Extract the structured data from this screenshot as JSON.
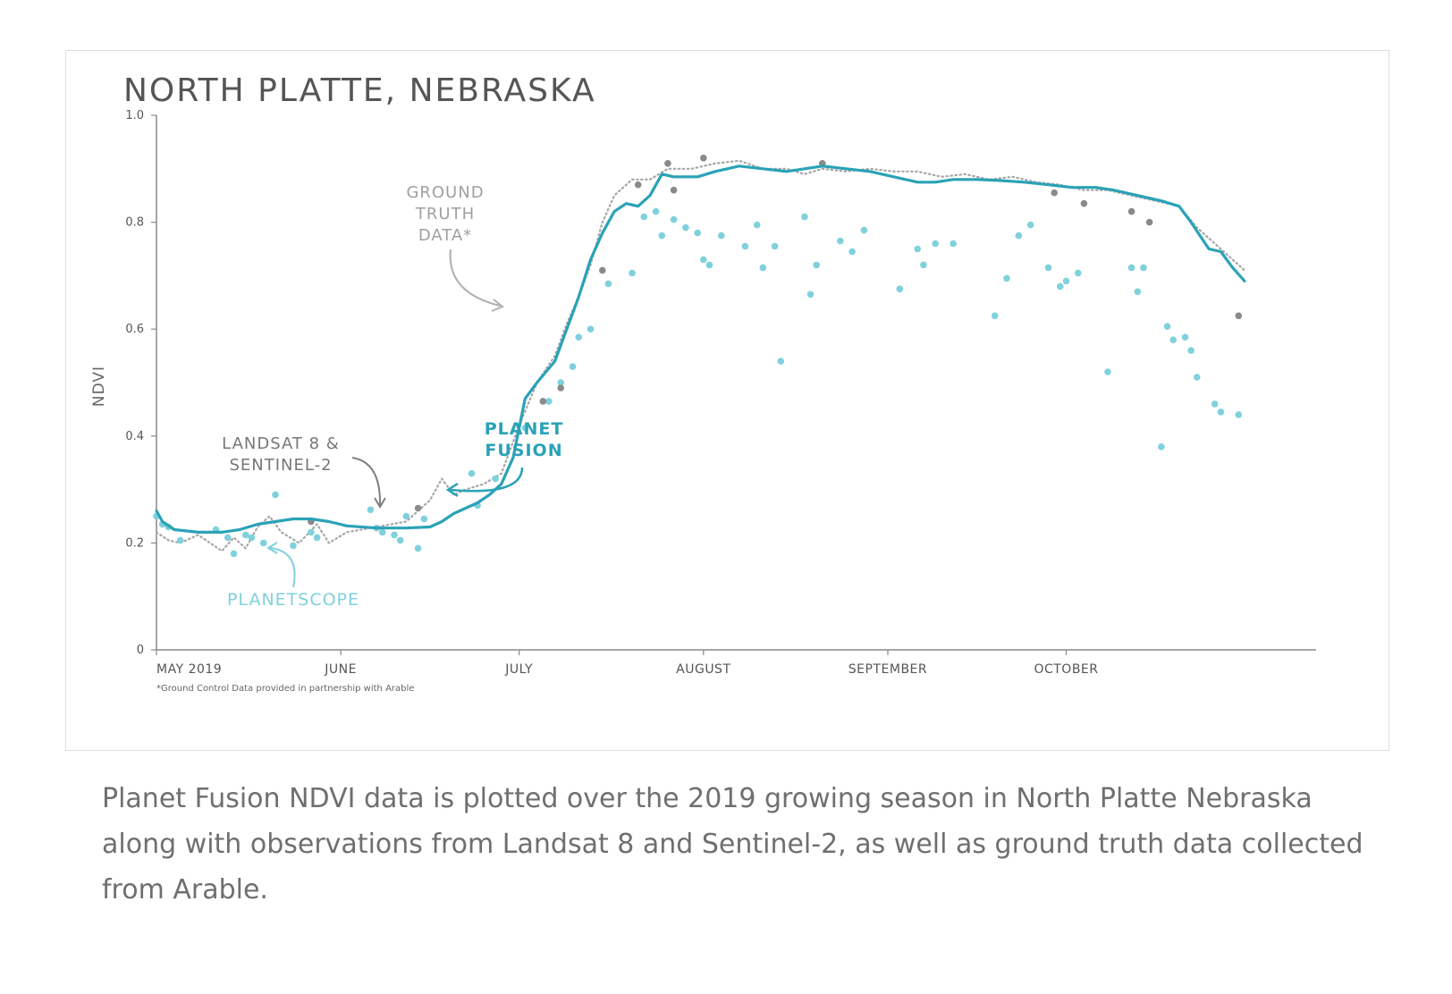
{
  "chart_data": {
    "type": "line",
    "title": "NORTH PLATTE, NEBRASKA",
    "xlabel": "",
    "ylabel": "NDVI",
    "ylim": [
      0,
      1.0
    ],
    "yticks": [
      {
        "value": 0,
        "label": "0"
      },
      {
        "value": 0.2,
        "label": "0.2"
      },
      {
        "value": 0.4,
        "label": "0.4"
      },
      {
        "value": 0.6,
        "label": "0.6"
      },
      {
        "value": 0.8,
        "label": "0.8"
      },
      {
        "value": 1.0,
        "label": "1.0"
      }
    ],
    "xlim": [
      "2019-05-01",
      "2019-10-31"
    ],
    "xticks": [
      {
        "date": "2019-05-01",
        "label": "MAY 2019"
      },
      {
        "date": "2019-06-01",
        "label": "JUNE"
      },
      {
        "date": "2019-07-01",
        "label": "JULY"
      },
      {
        "date": "2019-08-01",
        "label": "AUGUST"
      },
      {
        "date": "2019-09-01",
        "label": "SEPTEMBER"
      },
      {
        "date": "2019-10-01",
        "label": "OCTOBER"
      }
    ],
    "grid": false,
    "legend": "none",
    "footnote": "*Ground Control Data provided in partnership with Arable",
    "colors": {
      "planet_fusion": "#2aa2b7",
      "ground_truth": "#a6a6a6",
      "planetscope": "#7fd1dc",
      "landsat_sentinel": "#8a8a8a",
      "axis": "#888888"
    },
    "series": [
      {
        "name": "PLANET FUSION",
        "style": "line",
        "points": [
          [
            "2019-05-01",
            0.26
          ],
          [
            "2019-05-02",
            0.24
          ],
          [
            "2019-05-04",
            0.225
          ],
          [
            "2019-05-08",
            0.22
          ],
          [
            "2019-05-12",
            0.22
          ],
          [
            "2019-05-15",
            0.225
          ],
          [
            "2019-05-18",
            0.235
          ],
          [
            "2019-05-21",
            0.24
          ],
          [
            "2019-05-24",
            0.245
          ],
          [
            "2019-05-27",
            0.245
          ],
          [
            "2019-05-30",
            0.24
          ],
          [
            "2019-06-02",
            0.232
          ],
          [
            "2019-06-07",
            0.228
          ],
          [
            "2019-06-12",
            0.228
          ],
          [
            "2019-06-16",
            0.23
          ],
          [
            "2019-06-18",
            0.24
          ],
          [
            "2019-06-20",
            0.255
          ],
          [
            "2019-06-22",
            0.265
          ],
          [
            "2019-06-24",
            0.275
          ],
          [
            "2019-06-26",
            0.29
          ],
          [
            "2019-06-28",
            0.31
          ],
          [
            "2019-06-30",
            0.36
          ],
          [
            "2019-07-02",
            0.47
          ],
          [
            "2019-07-04",
            0.5
          ],
          [
            "2019-07-07",
            0.54
          ],
          [
            "2019-07-09",
            0.6
          ],
          [
            "2019-07-11",
            0.66
          ],
          [
            "2019-07-13",
            0.73
          ],
          [
            "2019-07-15",
            0.78
          ],
          [
            "2019-07-17",
            0.82
          ],
          [
            "2019-07-19",
            0.835
          ],
          [
            "2019-07-21",
            0.83
          ],
          [
            "2019-07-23",
            0.85
          ],
          [
            "2019-07-25",
            0.89
          ],
          [
            "2019-07-27",
            0.885
          ],
          [
            "2019-07-31",
            0.885
          ],
          [
            "2019-08-03",
            0.895
          ],
          [
            "2019-08-07",
            0.905
          ],
          [
            "2019-08-11",
            0.9
          ],
          [
            "2019-08-15",
            0.895
          ],
          [
            "2019-08-18",
            0.9
          ],
          [
            "2019-08-21",
            0.905
          ],
          [
            "2019-08-25",
            0.9
          ],
          [
            "2019-08-29",
            0.895
          ],
          [
            "2019-09-02",
            0.885
          ],
          [
            "2019-09-06",
            0.875
          ],
          [
            "2019-09-09",
            0.875
          ],
          [
            "2019-09-12",
            0.88
          ],
          [
            "2019-09-16",
            0.88
          ],
          [
            "2019-09-20",
            0.878
          ],
          [
            "2019-09-24",
            0.875
          ],
          [
            "2019-09-28",
            0.87
          ],
          [
            "2019-10-02",
            0.865
          ],
          [
            "2019-10-06",
            0.865
          ],
          [
            "2019-10-09",
            0.86
          ],
          [
            "2019-10-13",
            0.85
          ],
          [
            "2019-10-17",
            0.84
          ],
          [
            "2019-10-20",
            0.83
          ],
          [
            "2019-10-22",
            0.8
          ],
          [
            "2019-10-25",
            0.75
          ],
          [
            "2019-10-27",
            0.745
          ],
          [
            "2019-10-29",
            0.715
          ],
          [
            "2019-10-31",
            0.69
          ]
        ]
      },
      {
        "name": "GROUND TRUTH DATA*",
        "style": "dotted-line",
        "points": [
          [
            "2019-05-01",
            0.22
          ],
          [
            "2019-05-03",
            0.205
          ],
          [
            "2019-05-05",
            0.2
          ],
          [
            "2019-05-08",
            0.215
          ],
          [
            "2019-05-10",
            0.2
          ],
          [
            "2019-05-12",
            0.185
          ],
          [
            "2019-05-14",
            0.21
          ],
          [
            "2019-05-16",
            0.19
          ],
          [
            "2019-05-18",
            0.23
          ],
          [
            "2019-05-20",
            0.25
          ],
          [
            "2019-05-22",
            0.22
          ],
          [
            "2019-05-25",
            0.2
          ],
          [
            "2019-05-28",
            0.235
          ],
          [
            "2019-05-30",
            0.2
          ],
          [
            "2019-06-02",
            0.22
          ],
          [
            "2019-06-07",
            0.23
          ],
          [
            "2019-06-12",
            0.24
          ],
          [
            "2019-06-16",
            0.28
          ],
          [
            "2019-06-18",
            0.32
          ],
          [
            "2019-06-20",
            0.29
          ],
          [
            "2019-06-22",
            0.3
          ],
          [
            "2019-06-25",
            0.31
          ],
          [
            "2019-06-28",
            0.33
          ],
          [
            "2019-07-01",
            0.42
          ],
          [
            "2019-07-04",
            0.5
          ],
          [
            "2019-07-07",
            0.55
          ],
          [
            "2019-07-09",
            0.61
          ],
          [
            "2019-07-11",
            0.66
          ],
          [
            "2019-07-13",
            0.72
          ],
          [
            "2019-07-15",
            0.8
          ],
          [
            "2019-07-17",
            0.85
          ],
          [
            "2019-07-20",
            0.88
          ],
          [
            "2019-07-23",
            0.88
          ],
          [
            "2019-07-26",
            0.9
          ],
          [
            "2019-07-30",
            0.9
          ],
          [
            "2019-08-03",
            0.91
          ],
          [
            "2019-08-07",
            0.915
          ],
          [
            "2019-08-11",
            0.9
          ],
          [
            "2019-08-15",
            0.9
          ],
          [
            "2019-08-18",
            0.89
          ],
          [
            "2019-08-21",
            0.9
          ],
          [
            "2019-08-25",
            0.895
          ],
          [
            "2019-08-29",
            0.9
          ],
          [
            "2019-09-02",
            0.895
          ],
          [
            "2019-09-06",
            0.895
          ],
          [
            "2019-09-10",
            0.885
          ],
          [
            "2019-09-14",
            0.89
          ],
          [
            "2019-09-18",
            0.88
          ],
          [
            "2019-09-22",
            0.885
          ],
          [
            "2019-09-26",
            0.875
          ],
          [
            "2019-09-30",
            0.87
          ],
          [
            "2019-10-04",
            0.86
          ],
          [
            "2019-10-08",
            0.86
          ],
          [
            "2019-10-12",
            0.85
          ],
          [
            "2019-10-16",
            0.84
          ],
          [
            "2019-10-20",
            0.83
          ],
          [
            "2019-10-23",
            0.79
          ],
          [
            "2019-10-26",
            0.76
          ],
          [
            "2019-10-29",
            0.73
          ],
          [
            "2019-10-31",
            0.71
          ]
        ]
      },
      {
        "name": "PLANETSCOPE",
        "style": "scatter",
        "points": [
          [
            "2019-05-01",
            0.25
          ],
          [
            "2019-05-02",
            0.235
          ],
          [
            "2019-05-03",
            0.23
          ],
          [
            "2019-05-05",
            0.205
          ],
          [
            "2019-05-11",
            0.225
          ],
          [
            "2019-05-13",
            0.21
          ],
          [
            "2019-05-14",
            0.18
          ],
          [
            "2019-05-16",
            0.215
          ],
          [
            "2019-05-17",
            0.21
          ],
          [
            "2019-05-19",
            0.2
          ],
          [
            "2019-05-21",
            0.29
          ],
          [
            "2019-05-24",
            0.195
          ],
          [
            "2019-05-27",
            0.22
          ],
          [
            "2019-05-28",
            0.21
          ],
          [
            "2019-06-06",
            0.262
          ],
          [
            "2019-06-07",
            0.228
          ],
          [
            "2019-06-08",
            0.22
          ],
          [
            "2019-06-10",
            0.215
          ],
          [
            "2019-06-11",
            0.205
          ],
          [
            "2019-06-12",
            0.25
          ],
          [
            "2019-06-14",
            0.19
          ],
          [
            "2019-06-15",
            0.245
          ],
          [
            "2019-06-23",
            0.33
          ],
          [
            "2019-06-24",
            0.27
          ],
          [
            "2019-06-27",
            0.32
          ],
          [
            "2019-07-02",
            0.415
          ],
          [
            "2019-07-06",
            0.465
          ],
          [
            "2019-07-08",
            0.5
          ],
          [
            "2019-07-10",
            0.53
          ],
          [
            "2019-07-11",
            0.585
          ],
          [
            "2019-07-13",
            0.6
          ],
          [
            "2019-07-16",
            0.685
          ],
          [
            "2019-07-20",
            0.705
          ],
          [
            "2019-07-22",
            0.81
          ],
          [
            "2019-07-24",
            0.82
          ],
          [
            "2019-07-25",
            0.775
          ],
          [
            "2019-07-27",
            0.805
          ],
          [
            "2019-07-29",
            0.79
          ],
          [
            "2019-07-31",
            0.78
          ],
          [
            "2019-08-01",
            0.73
          ],
          [
            "2019-08-02",
            0.72
          ],
          [
            "2019-08-04",
            0.775
          ],
          [
            "2019-08-08",
            0.755
          ],
          [
            "2019-08-10",
            0.795
          ],
          [
            "2019-08-11",
            0.715
          ],
          [
            "2019-08-13",
            0.755
          ],
          [
            "2019-08-14",
            0.54
          ],
          [
            "2019-08-18",
            0.81
          ],
          [
            "2019-08-19",
            0.665
          ],
          [
            "2019-08-20",
            0.72
          ],
          [
            "2019-08-24",
            0.765
          ],
          [
            "2019-08-26",
            0.745
          ],
          [
            "2019-08-28",
            0.785
          ],
          [
            "2019-09-03",
            0.675
          ],
          [
            "2019-09-06",
            0.75
          ],
          [
            "2019-09-07",
            0.72
          ],
          [
            "2019-09-09",
            0.76
          ],
          [
            "2019-09-12",
            0.76
          ],
          [
            "2019-09-19",
            0.625
          ],
          [
            "2019-09-21",
            0.695
          ],
          [
            "2019-09-23",
            0.775
          ],
          [
            "2019-09-25",
            0.795
          ],
          [
            "2019-09-28",
            0.715
          ],
          [
            "2019-09-30",
            0.68
          ],
          [
            "2019-10-01",
            0.69
          ],
          [
            "2019-10-03",
            0.705
          ],
          [
            "2019-10-08",
            0.52
          ],
          [
            "2019-10-12",
            0.715
          ],
          [
            "2019-10-13",
            0.67
          ],
          [
            "2019-10-14",
            0.715
          ],
          [
            "2019-10-17",
            0.38
          ],
          [
            "2019-10-18",
            0.605
          ],
          [
            "2019-10-19",
            0.58
          ],
          [
            "2019-10-21",
            0.585
          ],
          [
            "2019-10-22",
            0.56
          ],
          [
            "2019-10-23",
            0.51
          ],
          [
            "2019-10-26",
            0.46
          ],
          [
            "2019-10-27",
            0.445
          ],
          [
            "2019-10-30",
            0.44
          ]
        ]
      },
      {
        "name": "LANDSAT 8 & SENTINEL-2",
        "style": "scatter",
        "points": [
          [
            "2019-05-27",
            0.24
          ],
          [
            "2019-06-14",
            0.265
          ],
          [
            "2019-07-05",
            0.465
          ],
          [
            "2019-07-08",
            0.49
          ],
          [
            "2019-07-15",
            0.71
          ],
          [
            "2019-07-21",
            0.87
          ],
          [
            "2019-07-26",
            0.91
          ],
          [
            "2019-07-27",
            0.86
          ],
          [
            "2019-08-01",
            0.92
          ],
          [
            "2019-08-21",
            0.91
          ],
          [
            "2019-09-29",
            0.855
          ],
          [
            "2019-10-04",
            0.835
          ],
          [
            "2019-10-12",
            0.82
          ],
          [
            "2019-10-15",
            0.8
          ],
          [
            "2019-10-30",
            0.625
          ]
        ]
      }
    ]
  },
  "annotations": {
    "ground_truth": [
      "GROUND",
      "TRUTH",
      "DATA*"
    ],
    "landsat": [
      "LANDSAT 8 &",
      "SENTINEL-2"
    ],
    "planet_fusion": [
      "PLANET",
      "FUSION"
    ],
    "planetscope": "PLANETSCOPE"
  },
  "caption": "Planet Fusion NDVI data is plotted over the 2019 growing season in North Platte Nebraska along with observations from Landsat 8 and Sentinel-2, as well as ground truth data collected from Arable."
}
